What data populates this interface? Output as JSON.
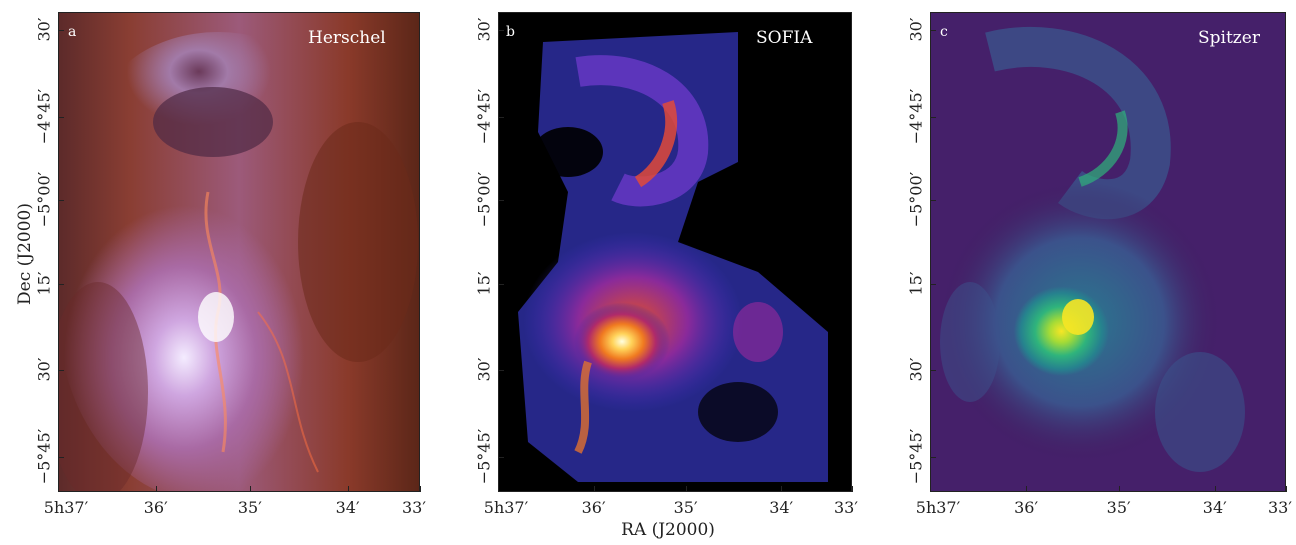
{
  "figure": {
    "ylabel": "Dec (J2000)",
    "xlabel": "RA (J2000)",
    "yticks": [
      "30′",
      "−4°45′",
      "−5°00′",
      "15′",
      "30′",
      "−5°45′"
    ],
    "xticks": [
      "5h37′",
      "36′",
      "35′",
      "34′",
      "33′"
    ]
  },
  "panels": [
    {
      "letter": "a",
      "title": "Herschel",
      "colormap": "red-violet composite",
      "background": "#7a2e20"
    },
    {
      "letter": "b",
      "title": "SOFIA",
      "colormap": "inferno-like",
      "background": "#000000"
    },
    {
      "letter": "c",
      "title": "Spitzer",
      "colormap": "viridis-like",
      "background": "#3f1e5e"
    }
  ]
}
